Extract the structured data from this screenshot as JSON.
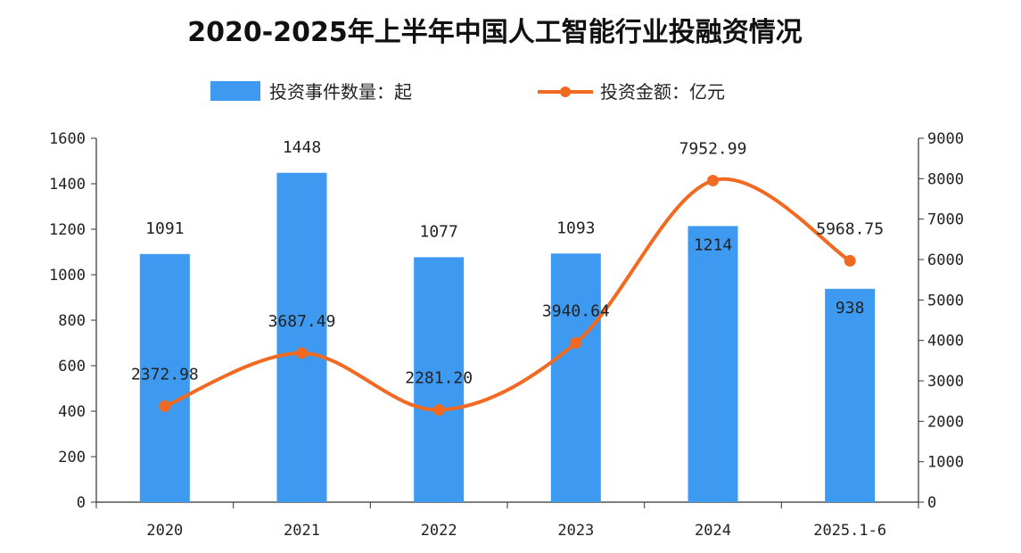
{
  "chart_data": {
    "type": "bar",
    "title": "2020-2025年上半年中国人工智能行业投融资情况",
    "categories": [
      "2020",
      "2021",
      "2022",
      "2023",
      "2024",
      "2025.1-6"
    ],
    "series": [
      {
        "name": "投资事件数量：起",
        "type": "bar",
        "axis": "left",
        "color": "#3d9af0",
        "values": [
          1091,
          1448,
          1077,
          1093,
          1214,
          938
        ],
        "labels": [
          "1091",
          "1448",
          "1077",
          "1093",
          "1214",
          "938"
        ]
      },
      {
        "name": "投资金额：亿元",
        "type": "line",
        "axis": "right",
        "color": "#f26a22",
        "values": [
          2372.98,
          3687.49,
          2281.2,
          3940.64,
          7952.99,
          5968.75
        ],
        "labels": [
          "2372.98",
          "3687.49",
          "2281.20",
          "3940.64",
          "7952.99",
          "5968.75"
        ]
      }
    ],
    "y_left": {
      "range": [
        0,
        1600
      ],
      "ticks": [
        "0",
        "200",
        "400",
        "600",
        "800",
        "1000",
        "1200",
        "1400",
        "1600"
      ]
    },
    "y_right": {
      "range": [
        0,
        9000
      ],
      "ticks": [
        "0",
        "1000",
        "2000",
        "3000",
        "4000",
        "5000",
        "6000",
        "7000",
        "8000",
        "9000"
      ]
    },
    "legend": "top",
    "grid": false
  }
}
